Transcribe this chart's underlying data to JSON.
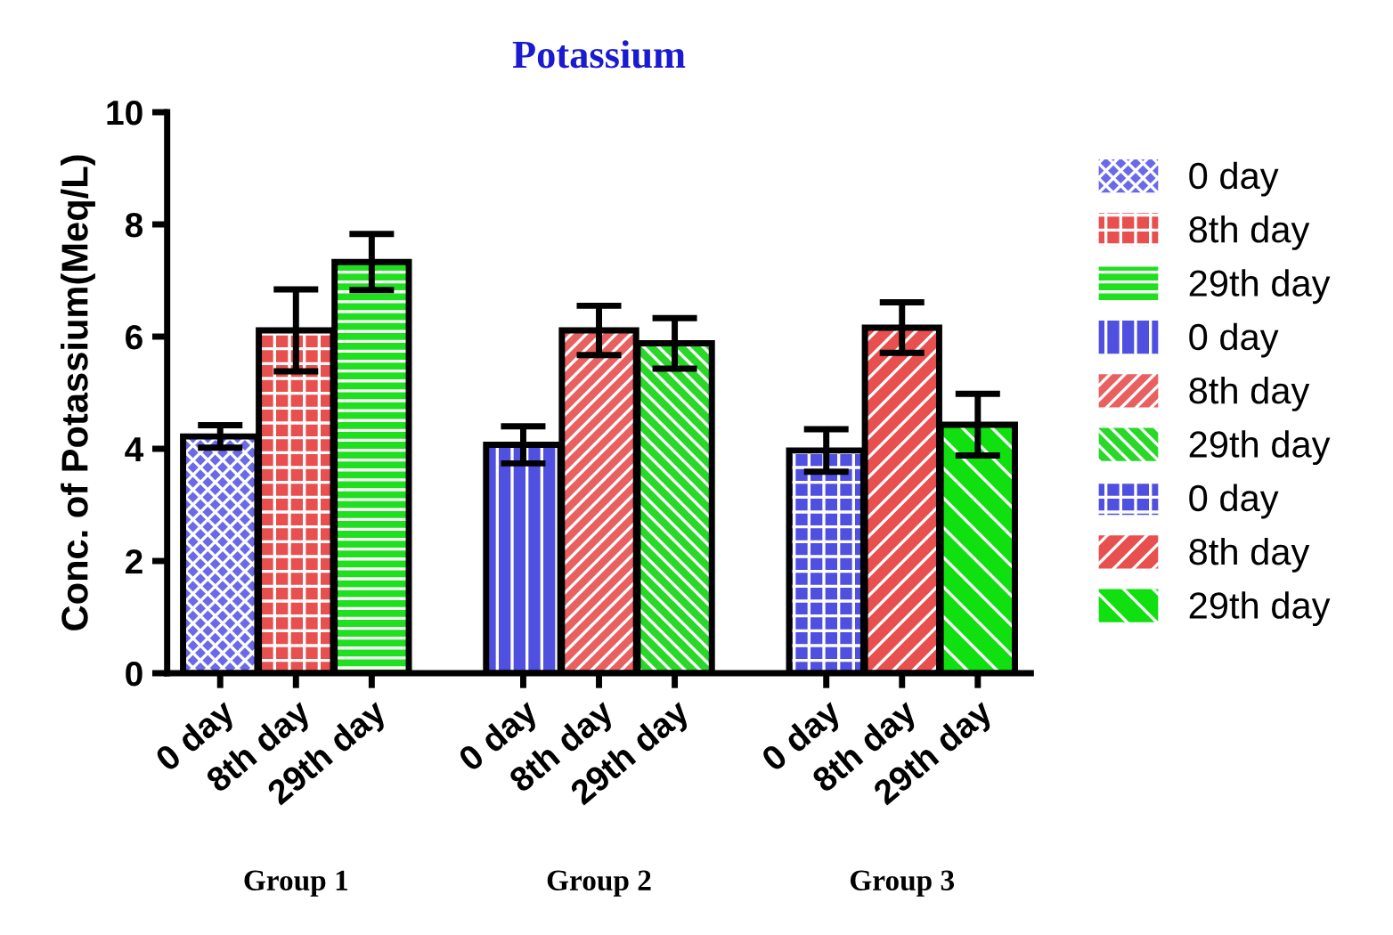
{
  "chart_data": {
    "type": "bar",
    "title": "Potassium",
    "ylabel": "Conc. of Potassium(Meq/L)",
    "categories": [
      "0 day",
      "8th day",
      "29th day",
      null,
      "0 day",
      "8th day",
      "29th day",
      null,
      "0 day",
      "8th day",
      "29th day"
    ],
    "series": [
      {
        "name": "0 day",
        "color": "#6a6ae8",
        "values": [
          4.22,
          null,
          null,
          null,
          null,
          null,
          null,
          null,
          null,
          null,
          null
        ],
        "errors": [
          0.2,
          null,
          null,
          null,
          null,
          null,
          null,
          null,
          null,
          null,
          null
        ]
      },
      {
        "name": "8th day",
        "color": "#e85050",
        "values": [
          null,
          6.11,
          null,
          null,
          null,
          null,
          null,
          null,
          null,
          null,
          null
        ],
        "errors": [
          null,
          0.73,
          null,
          null,
          null,
          null,
          null,
          null,
          null,
          null,
          null
        ]
      },
      {
        "name": "29th day",
        "color": "#1ee01e",
        "values": [
          null,
          null,
          7.33,
          null,
          null,
          null,
          null,
          null,
          null,
          null,
          null
        ],
        "errors": [
          null,
          null,
          0.5,
          null,
          null,
          null,
          null,
          null,
          null,
          null,
          null
        ]
      },
      {
        "name": "0 day",
        "color": "#5050e0",
        "values": [
          null,
          null,
          null,
          null,
          4.07,
          null,
          null,
          null,
          null,
          null,
          null
        ],
        "errors": [
          null,
          null,
          null,
          null,
          0.33,
          null,
          null,
          null,
          null,
          null,
          null
        ]
      },
      {
        "name": "8th day",
        "color": "#e86060",
        "values": [
          null,
          null,
          null,
          null,
          null,
          6.11,
          null,
          null,
          null,
          null,
          null
        ],
        "errors": [
          null,
          null,
          null,
          null,
          null,
          0.44,
          null,
          null,
          null,
          null,
          null
        ]
      },
      {
        "name": "29th day",
        "color": "#2ad82a",
        "values": [
          null,
          null,
          null,
          null,
          null,
          null,
          5.88,
          null,
          null,
          null,
          null
        ],
        "errors": [
          null,
          null,
          null,
          null,
          null,
          null,
          0.45,
          null,
          null,
          null,
          null
        ]
      },
      {
        "name": "0 day",
        "color": "#5050e0",
        "values": [
          null,
          null,
          null,
          null,
          null,
          null,
          null,
          null,
          3.97,
          null,
          null
        ],
        "errors": [
          null,
          null,
          null,
          null,
          null,
          null,
          null,
          null,
          0.38,
          null,
          null
        ]
      },
      {
        "name": "8th day",
        "color": "#e85050",
        "values": [
          null,
          null,
          null,
          null,
          null,
          null,
          null,
          null,
          null,
          6.16,
          null
        ],
        "errors": [
          null,
          null,
          null,
          null,
          null,
          null,
          null,
          null,
          null,
          0.45,
          null
        ]
      },
      {
        "name": "29th day",
        "color": "#10e010",
        "values": [
          null,
          null,
          null,
          null,
          null,
          null,
          null,
          null,
          null,
          null,
          4.43
        ],
        "errors": [
          null,
          null,
          null,
          null,
          null,
          null,
          null,
          null,
          null,
          null,
          0.55
        ]
      }
    ],
    "ylim": [
      0,
      10
    ],
    "yticks": [
      0,
      2,
      4,
      6,
      8,
      10
    ],
    "grid": false,
    "legend": "right",
    "annotations": [
      "Group 1",
      "Group 2",
      "Group 3"
    ]
  }
}
